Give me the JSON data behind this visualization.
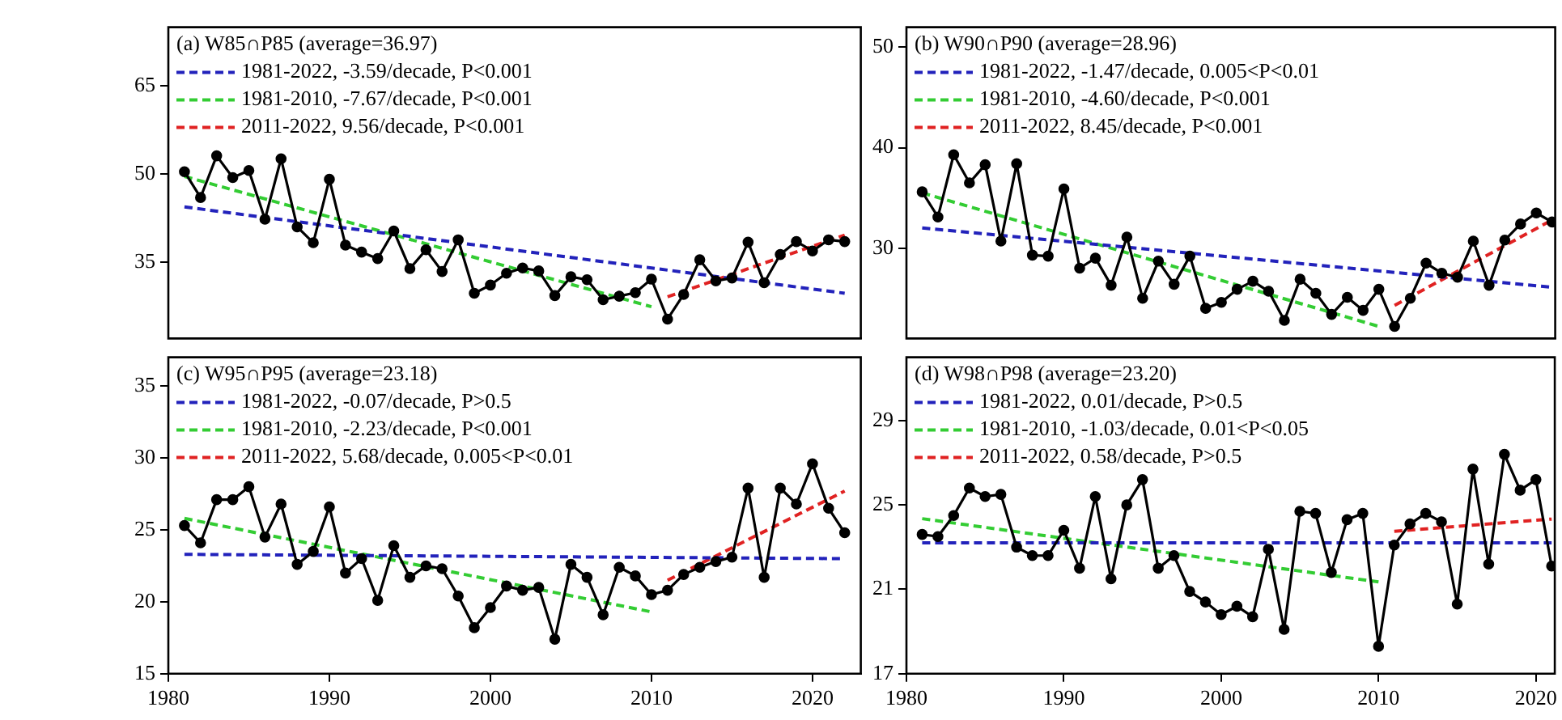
{
  "chart_data": [
    {
      "type": "line",
      "title": "(a) W85∩P85 (average=36.97)",
      "xlim": [
        1980,
        2023
      ],
      "xticks": [
        1980,
        1990,
        2000,
        2010,
        2020
      ],
      "ylim": [
        22,
        75
      ],
      "yticks": [
        35,
        50,
        65
      ],
      "tick_labels": "y",
      "legend": "top left",
      "x": [
        1981,
        1982,
        1983,
        1984,
        1985,
        1986,
        1987,
        1988,
        1989,
        1990,
        1991,
        1992,
        1993,
        1994,
        1995,
        1996,
        1997,
        1998,
        1999,
        2000,
        2001,
        2002,
        2003,
        2004,
        2005,
        2006,
        2007,
        2008,
        2009,
        2010,
        2011,
        2012,
        2013,
        2014,
        2015,
        2016,
        2017,
        2018,
        2019,
        2020,
        2021,
        2022
      ],
      "series": [
        {
          "color": "#000000",
          "marker": "circle",
          "line_style": "solid",
          "values": [
            50.4,
            46.0,
            53.1,
            49.4,
            50.6,
            42.3,
            52.6,
            41.0,
            38.3,
            49.1,
            37.9,
            36.7,
            35.6,
            40.3,
            33.9,
            37.1,
            33.4,
            38.8,
            29.7,
            31.1,
            33.1,
            34.0,
            33.5,
            29.3,
            32.5,
            32.0,
            28.6,
            29.2,
            29.8,
            32.1,
            25.3,
            29.5,
            35.4,
            31.8,
            32.3,
            38.4,
            31.5,
            36.3,
            38.5,
            36.9,
            38.8,
            38.5
          ]
        },
        {
          "name": "1981-2022, -3.59/decade, P<0.001",
          "color": "#2222bb",
          "marker": "none",
          "line_style": "dashed",
          "x": [
            1981,
            2022
          ],
          "values": [
            44.4,
            29.7
          ]
        },
        {
          "name": "1981-2010, -7.67/decade, P<0.001",
          "color": "#33cc33",
          "marker": "none",
          "line_style": "dashed",
          "x": [
            1981,
            2010
          ],
          "values": [
            49.6,
            27.4
          ]
        },
        {
          "name": "2011-2022, 9.56/decade, P<0.001",
          "color": "#e02222",
          "marker": "none",
          "line_style": "dashed",
          "x": [
            2011,
            2022
          ],
          "values": [
            29.1,
            39.6
          ]
        }
      ]
    },
    {
      "type": "line",
      "title": "(b) W90∩P90 (average=28.96)",
      "xlim": [
        1980,
        2021.2
      ],
      "xticks": [
        1980,
        1990,
        2000,
        2010,
        2020
      ],
      "ylim": [
        21,
        52
      ],
      "yticks": [
        30,
        40,
        50
      ],
      "tick_labels": "y",
      "legend": "top left",
      "x": [
        1981,
        1982,
        1983,
        1984,
        1985,
        1986,
        1987,
        1988,
        1989,
        1990,
        1991,
        1992,
        1993,
        1994,
        1995,
        1996,
        1997,
        1998,
        1999,
        2000,
        2001,
        2002,
        2003,
        2004,
        2005,
        2006,
        2007,
        2008,
        2009,
        2010,
        2011,
        2012,
        2013,
        2014,
        2015,
        2016,
        2017,
        2018,
        2019,
        2020,
        2021
      ],
      "series": [
        {
          "color": "#000000",
          "marker": "circle",
          "line_style": "solid",
          "values": [
            35.6,
            33.1,
            39.3,
            36.5,
            38.3,
            30.7,
            38.4,
            29.3,
            29.2,
            35.9,
            28.0,
            29.0,
            26.3,
            31.1,
            25.0,
            28.7,
            26.4,
            29.2,
            24.0,
            24.6,
            25.9,
            26.7,
            25.7,
            22.8,
            26.9,
            25.5,
            23.4,
            25.1,
            23.8,
            25.9,
            22.2,
            25.0,
            28.5,
            27.5,
            27.1,
            30.7,
            26.3,
            30.8,
            32.4,
            33.5,
            32.6
          ]
        },
        {
          "name": "1981-2022, -1.47/decade, 0.005<P<0.01",
          "color": "#2222bb",
          "marker": "none",
          "line_style": "dashed",
          "x": [
            1981,
            2021
          ],
          "values": [
            32.0,
            26.1
          ]
        },
        {
          "name": "1981-2010, -4.60/decade, P<0.001",
          "color": "#33cc33",
          "marker": "none",
          "line_style": "dashed",
          "x": [
            1981,
            2010
          ],
          "values": [
            35.5,
            22.2
          ]
        },
        {
          "name": "2011-2022, 8.45/decade, P<0.001",
          "color": "#e02222",
          "marker": "none",
          "line_style": "dashed",
          "x": [
            2011,
            2021
          ],
          "values": [
            24.3,
            32.8
          ]
        }
      ]
    },
    {
      "type": "line",
      "title": "(c) W95∩P95 (average=23.18)",
      "xlim": [
        1980,
        2023
      ],
      "xticks": [
        1980,
        1990,
        2000,
        2010,
        2020
      ],
      "ylim": [
        15,
        37
      ],
      "yticks": [
        15,
        20,
        25,
        30,
        35
      ],
      "legend": "top left",
      "x": [
        1981,
        1982,
        1983,
        1984,
        1985,
        1986,
        1987,
        1988,
        1989,
        1990,
        1991,
        1992,
        1993,
        1994,
        1995,
        1996,
        1997,
        1998,
        1999,
        2000,
        2001,
        2002,
        2003,
        2004,
        2005,
        2006,
        2007,
        2008,
        2009,
        2010,
        2011,
        2012,
        2013,
        2014,
        2015,
        2016,
        2017,
        2018,
        2019,
        2020,
        2021,
        2022
      ],
      "series": [
        {
          "color": "#000000",
          "marker": "circle",
          "line_style": "solid",
          "values": [
            25.3,
            24.1,
            27.1,
            27.1,
            28.0,
            24.5,
            26.8,
            22.6,
            23.5,
            26.6,
            22.0,
            23.0,
            20.1,
            23.9,
            21.7,
            22.5,
            22.3,
            20.4,
            18.2,
            19.6,
            21.1,
            20.8,
            21.0,
            17.4,
            22.6,
            21.7,
            19.1,
            22.4,
            21.8,
            20.5,
            20.8,
            21.9,
            22.4,
            22.8,
            23.1,
            27.9,
            21.7,
            27.9,
            26.8,
            29.6,
            26.5,
            24.8
          ]
        },
        {
          "name": "1981-2022, -0.07/decade, P>0.5",
          "color": "#2222bb",
          "marker": "none",
          "line_style": "dashed",
          "x": [
            1981,
            2022
          ],
          "values": [
            23.3,
            23.0
          ]
        },
        {
          "name": "1981-2010, -2.23/decade, P<0.001",
          "color": "#33cc33",
          "marker": "none",
          "line_style": "dashed",
          "x": [
            1981,
            2010
          ],
          "values": [
            25.8,
            19.3
          ]
        },
        {
          "name": "2011-2022, 5.68/decade, 0.005<P<0.01",
          "color": "#e02222",
          "marker": "none",
          "line_style": "dashed",
          "x": [
            2011,
            2022
          ],
          "values": [
            21.5,
            27.7
          ]
        }
      ]
    },
    {
      "type": "line",
      "title": "(d) W98∩P98 (average=23.20)",
      "xlim": [
        1980,
        2021.2
      ],
      "xticks": [
        1980,
        1990,
        2000,
        2010,
        2020
      ],
      "ylim": [
        17,
        32
      ],
      "yticks": [
        17,
        21,
        25,
        29
      ],
      "legend": "top left",
      "x": [
        1981,
        1982,
        1983,
        1984,
        1985,
        1986,
        1987,
        1988,
        1989,
        1990,
        1991,
        1992,
        1993,
        1994,
        1995,
        1996,
        1997,
        1998,
        1999,
        2000,
        2001,
        2002,
        2003,
        2004,
        2005,
        2006,
        2007,
        2008,
        2009,
        2010,
        2011,
        2012,
        2013,
        2014,
        2015,
        2016,
        2017,
        2018,
        2019,
        2020,
        2021
      ],
      "series": [
        {
          "color": "#000000",
          "marker": "circle",
          "line_style": "solid",
          "values": [
            23.6,
            23.5,
            24.5,
            25.8,
            25.4,
            25.5,
            23.0,
            22.6,
            22.6,
            23.8,
            22.0,
            25.4,
            21.5,
            25.0,
            26.2,
            22.0,
            22.6,
            20.9,
            20.4,
            19.8,
            20.2,
            19.7,
            22.9,
            19.1,
            24.7,
            24.6,
            21.8,
            24.3,
            24.6,
            18.3,
            23.1,
            24.1,
            24.6,
            24.2,
            20.3,
            26.7,
            22.2,
            27.4,
            25.7,
            26.2,
            22.1
          ]
        },
        {
          "name": "1981-2022, 0.01/decade, P>0.5",
          "color": "#2222bb",
          "marker": "none",
          "line_style": "dashed",
          "x": [
            1981,
            2021
          ],
          "values": [
            23.2,
            23.2
          ]
        },
        {
          "name": "1981-2010, -1.03/decade, 0.01<P<0.05",
          "color": "#33cc33",
          "marker": "none",
          "line_style": "dashed",
          "x": [
            1981,
            2010
          ],
          "values": [
            24.35,
            21.35
          ]
        },
        {
          "name": "2011-2022, 0.58/decade, P>0.5",
          "color": "#e02222",
          "marker": "none",
          "line_style": "dashed",
          "x": [
            2011,
            2021
          ],
          "values": [
            23.75,
            24.33
          ]
        }
      ]
    }
  ]
}
